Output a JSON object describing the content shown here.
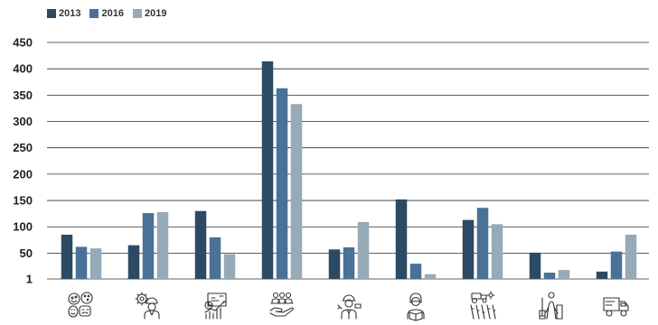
{
  "chart_data": {
    "type": "bar",
    "title": "",
    "xlabel": "",
    "ylabel": "",
    "categories": [
      "arts",
      "engineering",
      "business",
      "social-care",
      "construction",
      "education",
      "agriculture",
      "services",
      "transport"
    ],
    "category_icons": [
      "theatre-masks-palette-icon",
      "engineer-gear-icon",
      "presentation-chart-icon",
      "people-hand-icon",
      "construction-worker-icon",
      "teacher-book-icon",
      "tractor-field-icon",
      "cleaner-worker-icon",
      "delivery-truck-icon"
    ],
    "series": [
      {
        "name": "2013",
        "color": "#2c4a63",
        "values": [
          85,
          65,
          130,
          414,
          57,
          152,
          113,
          51,
          15
        ]
      },
      {
        "name": "2016",
        "color": "#4a7198",
        "values": [
          62,
          126,
          80,
          363,
          61,
          30,
          136,
          13,
          53
        ]
      },
      {
        "name": "2019",
        "color": "#96aab7",
        "values": [
          59,
          128,
          48,
          333,
          109,
          10,
          105,
          18,
          85
        ]
      }
    ],
    "yticks": [
      1,
      50,
      100,
      150,
      200,
      250,
      300,
      350,
      400,
      450
    ],
    "ylim": [
      1,
      450
    ],
    "grid": true,
    "legend_position": "top-left"
  }
}
